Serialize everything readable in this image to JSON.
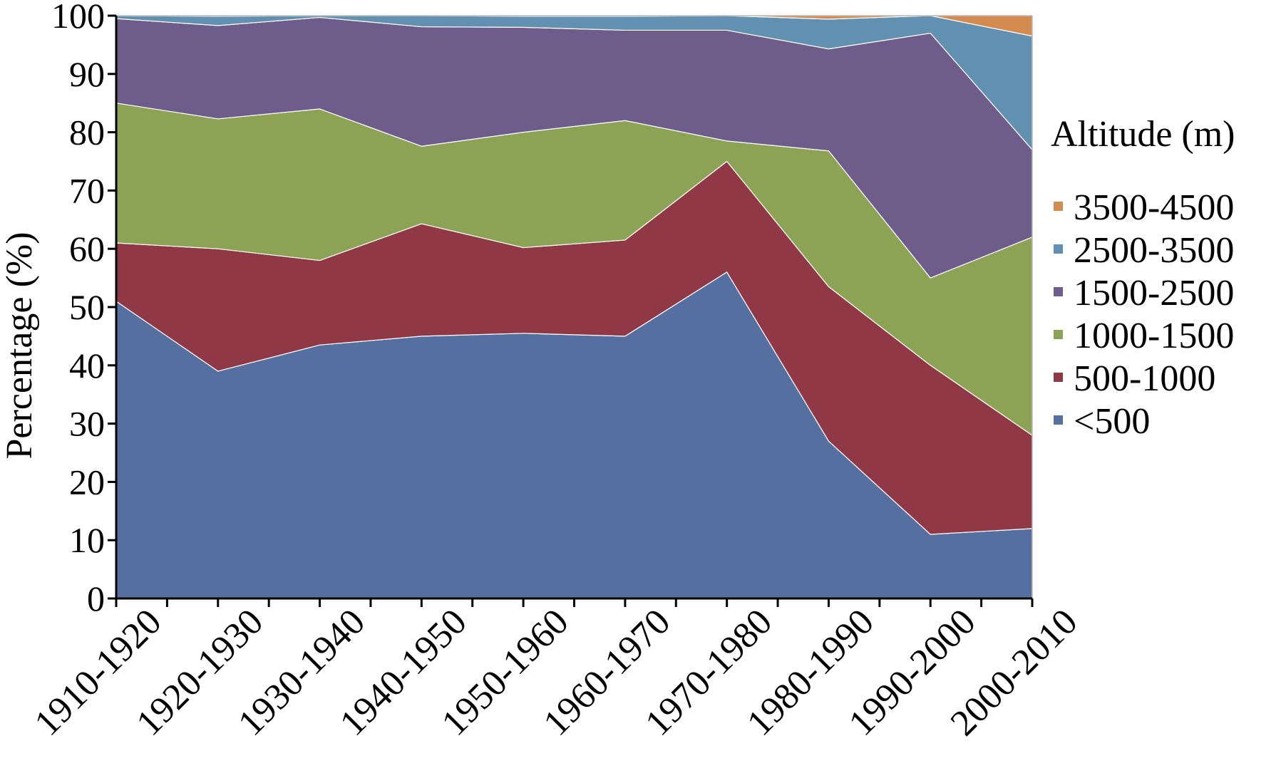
{
  "chart_data": {
    "type": "area",
    "stacked": true,
    "title": "",
    "ylabel": "Percentage (%)",
    "xlabel": "",
    "ylim": [
      0,
      100
    ],
    "yticks": [
      0,
      10,
      20,
      30,
      40,
      50,
      60,
      70,
      80,
      90,
      100
    ],
    "categories": [
      "1910-1920",
      "1920-1930",
      "1930-1940",
      "1940-1950",
      "1950-1960",
      "1960-1970",
      "1970-1980",
      "1980-1990",
      "1990-2000",
      "2000-2010"
    ],
    "legend_title": "Altitude (m)",
    "legend_position": "right",
    "grid": false,
    "series": [
      {
        "name": "<500",
        "color": "#566fa1",
        "values": [
          51,
          39,
          43.5,
          45,
          45.5,
          45,
          56,
          27,
          11,
          12
        ]
      },
      {
        "name": "500-1000",
        "color": "#913846",
        "values": [
          10,
          21,
          14.5,
          19.3,
          14.7,
          16.5,
          19,
          26.5,
          29,
          16
        ]
      },
      {
        "name": "1000-1500",
        "color": "#8ca255",
        "values": [
          24,
          22.3,
          26,
          13.3,
          19.8,
          20.5,
          3.5,
          23.3,
          15,
          34
        ]
      },
      {
        "name": "1500-2500",
        "color": "#6e5c8a",
        "values": [
          14.5,
          16,
          15.7,
          20.5,
          18,
          15.5,
          19,
          17.5,
          42,
          15
        ]
      },
      {
        "name": "2500-3500",
        "color": "#6190b0",
        "values": [
          0.5,
          1.6,
          0.3,
          1.9,
          1.9,
          2.4,
          3.2,
          5.1,
          3,
          19.5
        ]
      },
      {
        "name": "3500-4500",
        "color": "#d38b4f",
        "values": [
          0,
          0.1,
          0,
          0,
          0.1,
          0.1,
          0.3,
          0.6,
          0.3,
          3.5
        ]
      }
    ]
  }
}
